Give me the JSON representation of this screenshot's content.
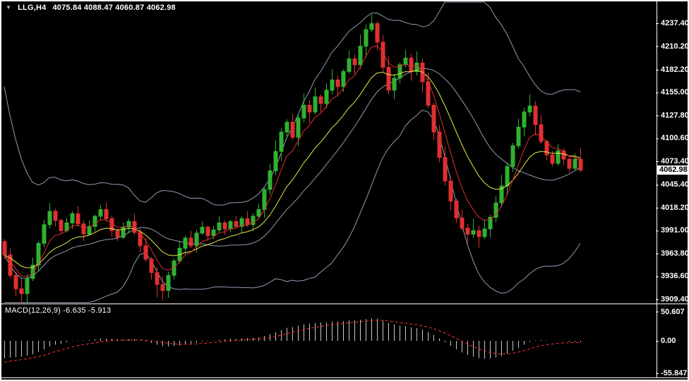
{
  "header": {
    "dropdown_icon": "▼",
    "symbol_period": "LLG,H4",
    "ohlc_text": "4075.84 4088.47 4060.87 4062.98"
  },
  "price_axis": {
    "ticks": [
      "4237.40",
      "4210.20",
      "4182.20",
      "4155.00",
      "4127.80",
      "4100.60",
      "4073.40",
      "4045.40",
      "4018.20",
      "3991.00",
      "3963.80",
      "3936.60",
      "3909.40"
    ],
    "current_price": "4062.98"
  },
  "macd_panel": {
    "label": "MACD(12,26,9) -6.635 -5.913",
    "ticks": [
      "50.607",
      "0.00",
      "-55.847"
    ]
  },
  "chart_data": {
    "type": "candlestick",
    "symbol": "LLG",
    "timeframe": "H4",
    "last_candle": {
      "open": 4075.84,
      "high": 4088.47,
      "low": 4060.87,
      "close": 4062.98
    },
    "ohlc": [
      [
        3978,
        3981,
        3957,
        3962
      ],
      [
        3962,
        3970,
        3935,
        3938
      ],
      [
        3938,
        3942,
        3913,
        3922
      ],
      [
        3922,
        3934,
        3904,
        3916
      ],
      [
        3916,
        3939,
        3906,
        3934
      ],
      [
        3934,
        3959,
        3931,
        3950
      ],
      [
        3950,
        3979,
        3942,
        3976
      ],
      [
        3976,
        4004,
        3971,
        3998
      ],
      [
        3998,
        4024,
        3994,
        4014
      ],
      [
        4014,
        4017,
        3996,
        4003
      ],
      [
        4003,
        4005,
        3987,
        3991
      ],
      [
        3991,
        4006,
        3989,
        4000
      ],
      [
        4000,
        4014,
        3993,
        4011
      ],
      [
        4011,
        4020,
        3996,
        3999
      ],
      [
        3999,
        4003,
        3979,
        3987
      ],
      [
        3987,
        4003,
        3985,
        3996
      ],
      [
        3996,
        4010,
        3990,
        4008
      ],
      [
        4008,
        4021,
        4004,
        4016
      ],
      [
        4016,
        4024,
        4002,
        4005
      ],
      [
        4005,
        4008,
        3984,
        3991
      ],
      [
        3991,
        3993,
        3979,
        3983
      ],
      [
        3983,
        4001,
        3981,
        3995
      ],
      [
        3995,
        4005,
        3988,
        4002
      ],
      [
        4002,
        4011,
        3986,
        3989
      ],
      [
        3989,
        3993,
        3965,
        3973
      ],
      [
        3973,
        3982,
        3954,
        3957
      ],
      [
        3957,
        3960,
        3933,
        3941
      ],
      [
        3941,
        3947,
        3912,
        3927
      ],
      [
        3927,
        3937,
        3908,
        3920
      ],
      [
        3920,
        3942,
        3911,
        3938
      ],
      [
        3938,
        3958,
        3933,
        3955
      ],
      [
        3955,
        3978,
        3952,
        3970
      ],
      [
        3970,
        3985,
        3963,
        3982
      ],
      [
        3982,
        3991,
        3970,
        3973
      ],
      [
        3973,
        3992,
        3965,
        3988
      ],
      [
        3988,
        4002,
        3986,
        3995
      ],
      [
        3995,
        3997,
        3979,
        3985
      ],
      [
        3985,
        3997,
        3981,
        3992
      ],
      [
        3992,
        4008,
        3989,
        4000
      ],
      [
        4000,
        4003,
        3986,
        3993
      ],
      [
        3993,
        4004,
        3989,
        4002
      ],
      [
        4002,
        4008,
        3994,
        3996
      ],
      [
        3996,
        4008,
        3989,
        4005
      ],
      [
        4005,
        4014,
        3995,
        3998
      ],
      [
        3998,
        4012,
        3990,
        4008
      ],
      [
        4008,
        4023,
        4006,
        4016
      ],
      [
        4016,
        4043,
        4006,
        4040
      ],
      [
        4040,
        4070,
        4034,
        4062
      ],
      [
        4062,
        4098,
        4057,
        4085
      ],
      [
        4085,
        4113,
        4074,
        4108
      ],
      [
        4108,
        4123,
        4102,
        4120
      ],
      [
        4120,
        4130,
        4099,
        4102
      ],
      [
        4102,
        4130,
        4091,
        4125
      ],
      [
        4125,
        4154,
        4120,
        4140
      ],
      [
        4140,
        4146,
        4119,
        4132
      ],
      [
        4132,
        4161,
        4129,
        4150
      ],
      [
        4150,
        4153,
        4132,
        4142
      ],
      [
        4142,
        4166,
        4136,
        4158
      ],
      [
        4158,
        4183,
        4153,
        4170
      ],
      [
        4170,
        4175,
        4151,
        4162
      ],
      [
        4162,
        4183,
        4156,
        4180
      ],
      [
        4180,
        4205,
        4177,
        4195
      ],
      [
        4195,
        4200,
        4177,
        4188
      ],
      [
        4188,
        4224,
        4183,
        4210
      ],
      [
        4210,
        4236,
        4197,
        4230
      ],
      [
        4230,
        4248,
        4227,
        4237
      ],
      [
        4237,
        4240,
        4205,
        4215
      ],
      [
        4215,
        4223,
        4179,
        4185
      ],
      [
        4185,
        4198,
        4153,
        4158
      ],
      [
        4158,
        4177,
        4147,
        4172
      ],
      [
        4172,
        4191,
        4166,
        4188
      ],
      [
        4188,
        4206,
        4185,
        4196
      ],
      [
        4196,
        4201,
        4169,
        4180
      ],
      [
        4180,
        4204,
        4175,
        4190
      ],
      [
        4190,
        4196,
        4155,
        4168
      ],
      [
        4168,
        4179,
        4137,
        4140
      ],
      [
        4140,
        4143,
        4098,
        4108
      ],
      [
        4108,
        4116,
        4072,
        4078
      ],
      [
        4078,
        4091,
        4045,
        4050
      ],
      [
        4050,
        4055,
        4015,
        4026
      ],
      [
        4026,
        4029,
        4000,
        4006
      ],
      [
        4006,
        4016,
        3991,
        3994
      ],
      [
        3994,
        3999,
        3976,
        3987
      ],
      [
        3987,
        4005,
        3982,
        3991
      ],
      [
        3991,
        3997,
        3971,
        3984
      ],
      [
        3984,
        4004,
        3981,
        3993
      ],
      [
        3993,
        4010,
        3983,
        4007
      ],
      [
        4007,
        4032,
        4001,
        4024
      ],
      [
        4024,
        4057,
        4019,
        4044
      ],
      [
        4044,
        4072,
        4033,
        4067
      ],
      [
        4067,
        4095,
        4061,
        4092
      ],
      [
        4092,
        4124,
        4089,
        4114
      ],
      [
        4114,
        4137,
        4103,
        4132
      ],
      [
        4132,
        4153,
        4127,
        4139
      ],
      [
        4139,
        4145,
        4104,
        4117
      ],
      [
        4117,
        4128,
        4094,
        4097
      ],
      [
        4097,
        4099,
        4075,
        4081
      ],
      [
        4081,
        4086,
        4067,
        4071
      ],
      [
        4071,
        4094,
        4068,
        4086
      ],
      [
        4086,
        4089,
        4069,
        4076
      ],
      [
        4076,
        4078,
        4061,
        4065
      ],
      [
        4065,
        4082,
        4063,
        4076
      ],
      [
        4075.84,
        4088.47,
        4060.87,
        4062.98
      ]
    ],
    "indicators": {
      "bollinger": {
        "period": 20,
        "deviation": 2,
        "color": "#8f9cb2",
        "legacy_sd": 100,
        "legacy_decay": 8
      },
      "ma_fast": {
        "period": 6,
        "color": "#e03030"
      },
      "ma_slow": {
        "period": 14,
        "color": "#e8e84a"
      },
      "macd": {
        "fast": 12,
        "slow": 26,
        "signal": 9,
        "value_current": -6.635,
        "signal_current": -5.913,
        "axis_max": 50.607,
        "axis_min": -55.847,
        "histogram_color": "#c9c9c9",
        "signal_color": "#ff3030",
        "seed": {
          "ema_fast": 3944,
          "ema_slow": 3989,
          "signal": -51
        }
      }
    },
    "colors": {
      "up": "#30b130",
      "down": "#e03030",
      "background": "#000000",
      "band": "#8f9cb2",
      "frame": "#ffffff"
    }
  }
}
